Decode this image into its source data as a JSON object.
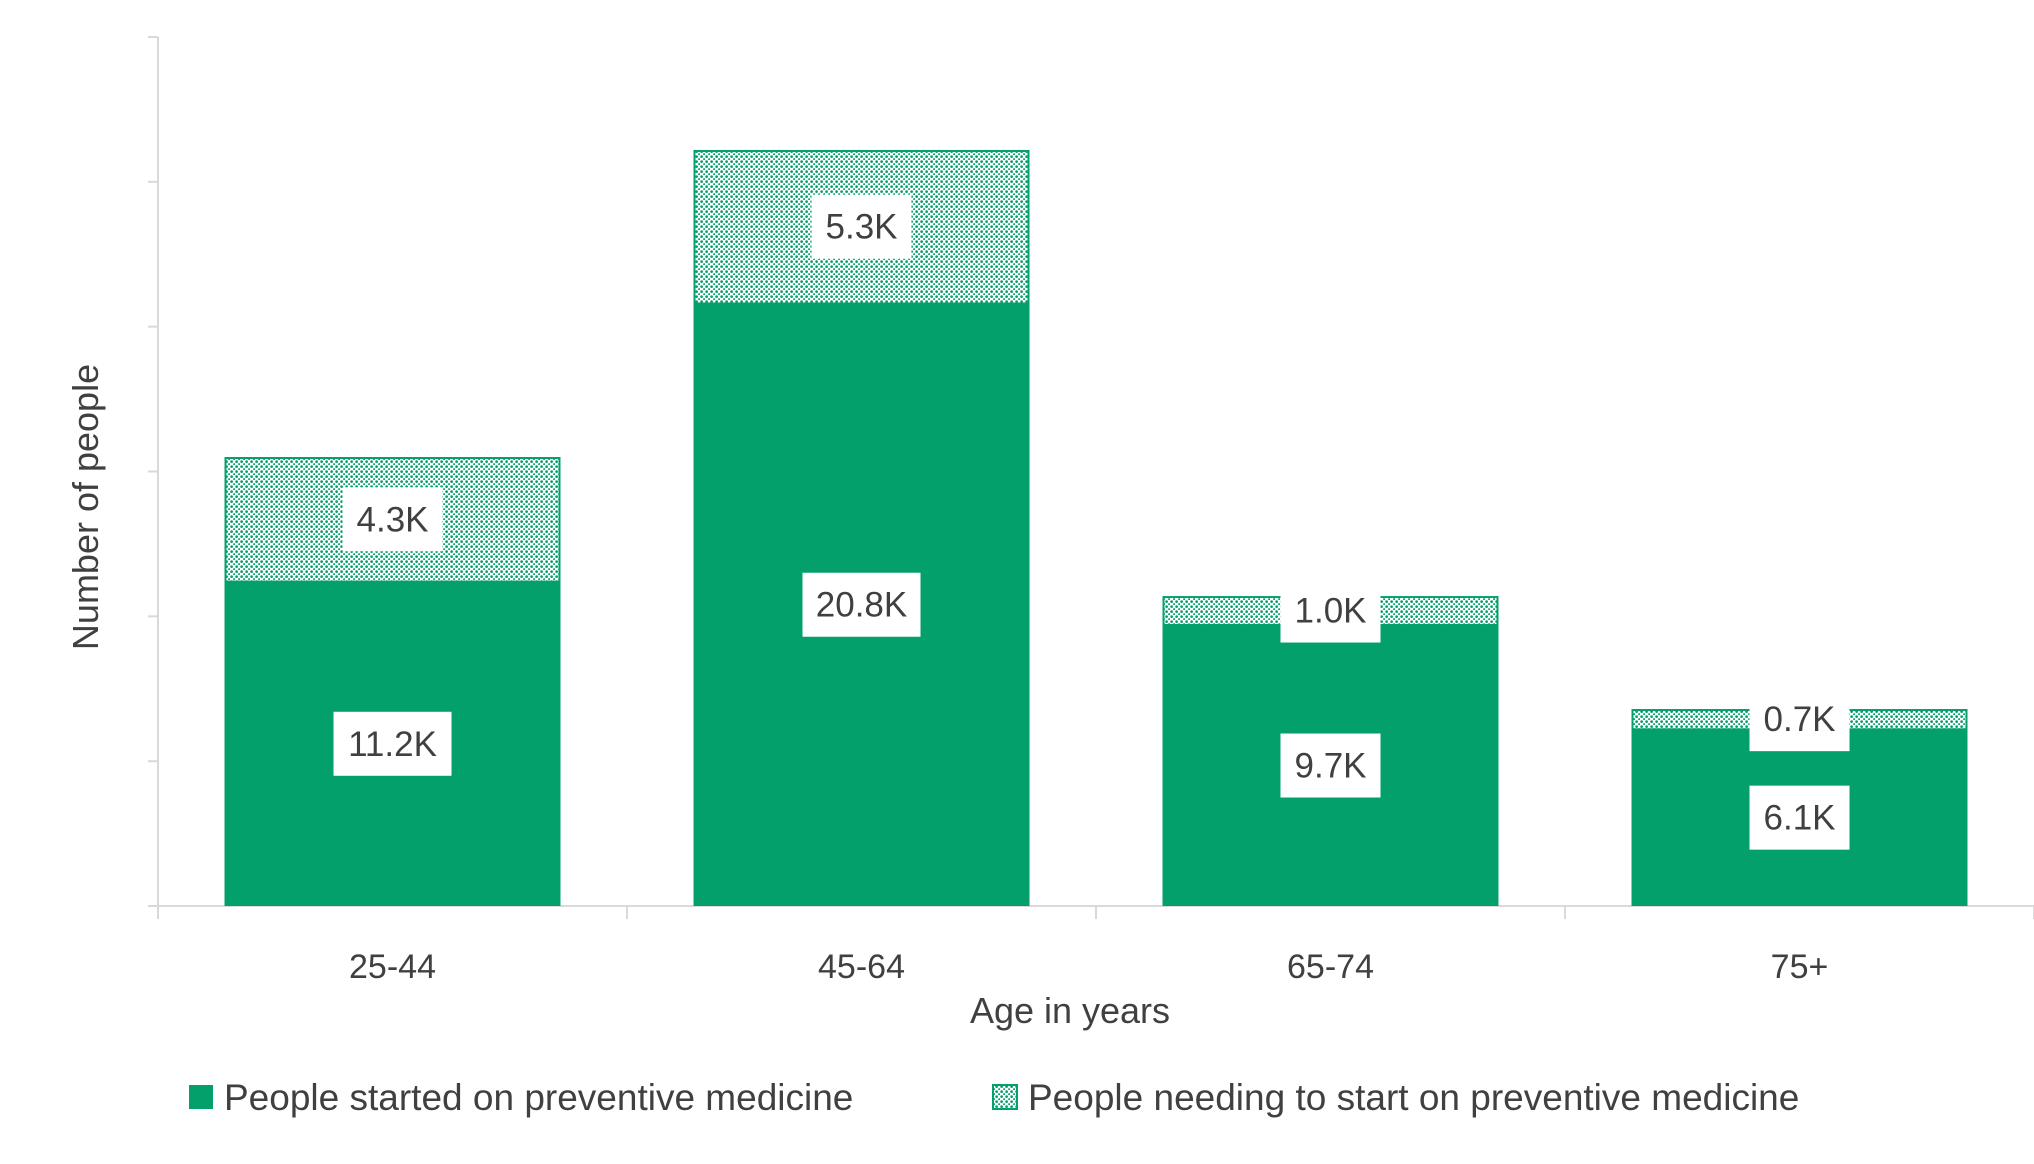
{
  "chart_data": {
    "type": "bar",
    "stacked": true,
    "categories": [
      "25-44",
      "45-64",
      "65-74",
      "75+"
    ],
    "series": [
      {
        "name": "People started on preventive medicine",
        "values": [
          11.2,
          20.8,
          9.7,
          6.1
        ],
        "labels": [
          "11.2K",
          "20.8K",
          "9.7K",
          "6.1K"
        ],
        "color": "#04a06b",
        "pattern": "solid"
      },
      {
        "name": "People needing to start on preventive medicine",
        "values": [
          4.3,
          5.3,
          1.0,
          0.7
        ],
        "labels": [
          "4.3K",
          "5.3K",
          "1.0K",
          "0.7K"
        ],
        "color": "#04a06b",
        "pattern": "dotted"
      }
    ],
    "title": "",
    "xlabel": "Age in years",
    "ylabel": "Number of people",
    "ylim": [
      0,
      30
    ],
    "y_tick_labels_shown": false,
    "grid": false,
    "legend_position": "bottom"
  }
}
